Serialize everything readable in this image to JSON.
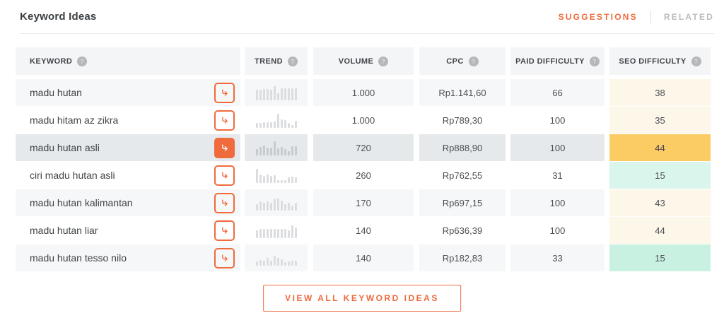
{
  "accent_color": "#ef6b3d",
  "ui": {
    "help_glyph": "?"
  },
  "header": {
    "title": "Keyword Ideas",
    "tabs": [
      {
        "label": "SUGGESTIONS",
        "active": true
      },
      {
        "label": "RELATED",
        "active": false
      }
    ]
  },
  "table": {
    "columns": [
      {
        "key": "keyword",
        "label": "KEYWORD"
      },
      {
        "key": "trend",
        "label": "TREND"
      },
      {
        "key": "volume",
        "label": "VOLUME"
      },
      {
        "key": "cpc",
        "label": "CPC"
      },
      {
        "key": "paid_difficulty",
        "label": "PAID DIFFICULTY"
      },
      {
        "key": "seo_difficulty",
        "label": "SEO DIFFICULTY"
      }
    ],
    "rows": [
      {
        "keyword": "madu hutan",
        "trend": [
          0.75,
          0.75,
          0.78,
          0.8,
          0.75,
          1.0,
          0.5,
          0.85,
          0.85,
          0.85,
          0.85,
          0.85
        ],
        "volume": "1.000",
        "cpc": "Rp1.141,60",
        "paid_difficulty": "66",
        "seo_difficulty": "38",
        "seo_color": "cream",
        "selected": false
      },
      {
        "keyword": "madu hitam az zikra",
        "trend": [
          0.35,
          0.35,
          0.4,
          0.38,
          0.42,
          0.45,
          1.0,
          0.6,
          0.55,
          0.35,
          0.22,
          0.5
        ],
        "volume": "1.000",
        "cpc": "Rp789,30",
        "paid_difficulty": "100",
        "seo_difficulty": "35",
        "seo_color": "cream",
        "selected": false
      },
      {
        "keyword": "madu hutan asli",
        "trend": [
          0.45,
          0.62,
          0.72,
          0.55,
          0.55,
          1.0,
          0.5,
          0.6,
          0.45,
          0.3,
          0.65,
          0.65
        ],
        "volume": "720",
        "cpc": "Rp888,90",
        "paid_difficulty": "100",
        "seo_difficulty": "44",
        "seo_color": "yellow",
        "selected": true
      },
      {
        "keyword": "ciri madu hutan asli",
        "trend": [
          1.0,
          0.62,
          0.5,
          0.6,
          0.5,
          0.55,
          0.2,
          0.2,
          0.18,
          0.4,
          0.45,
          0.4
        ],
        "volume": "260",
        "cpc": "Rp762,55",
        "paid_difficulty": "31",
        "seo_difficulty": "15",
        "seo_color": "mint",
        "selected": false
      },
      {
        "keyword": "madu hutan kalimantan",
        "trend": [
          0.45,
          0.65,
          0.55,
          0.65,
          0.55,
          0.85,
          0.85,
          0.7,
          0.45,
          0.55,
          0.35,
          0.55
        ],
        "volume": "170",
        "cpc": "Rp697,15",
        "paid_difficulty": "100",
        "seo_difficulty": "43",
        "seo_color": "cream",
        "selected": false
      },
      {
        "keyword": "madu hutan liar",
        "trend": [
          0.55,
          0.65,
          0.65,
          0.65,
          0.65,
          0.65,
          0.65,
          0.65,
          0.65,
          0.55,
          0.9,
          0.75
        ],
        "volume": "140",
        "cpc": "Rp636,39",
        "paid_difficulty": "100",
        "seo_difficulty": "44",
        "seo_color": "cream",
        "selected": false
      },
      {
        "keyword": "madu hutan tesso nilo",
        "trend": [
          0.3,
          0.4,
          0.35,
          0.55,
          0.35,
          0.7,
          0.55,
          0.45,
          0.25,
          0.3,
          0.35,
          0.35
        ],
        "volume": "140",
        "cpc": "Rp182,83",
        "paid_difficulty": "33",
        "seo_difficulty": "15",
        "seo_color": "mint-strong",
        "selected": false
      }
    ]
  },
  "footer": {
    "view_all_label": "VIEW ALL KEYWORD IDEAS"
  }
}
